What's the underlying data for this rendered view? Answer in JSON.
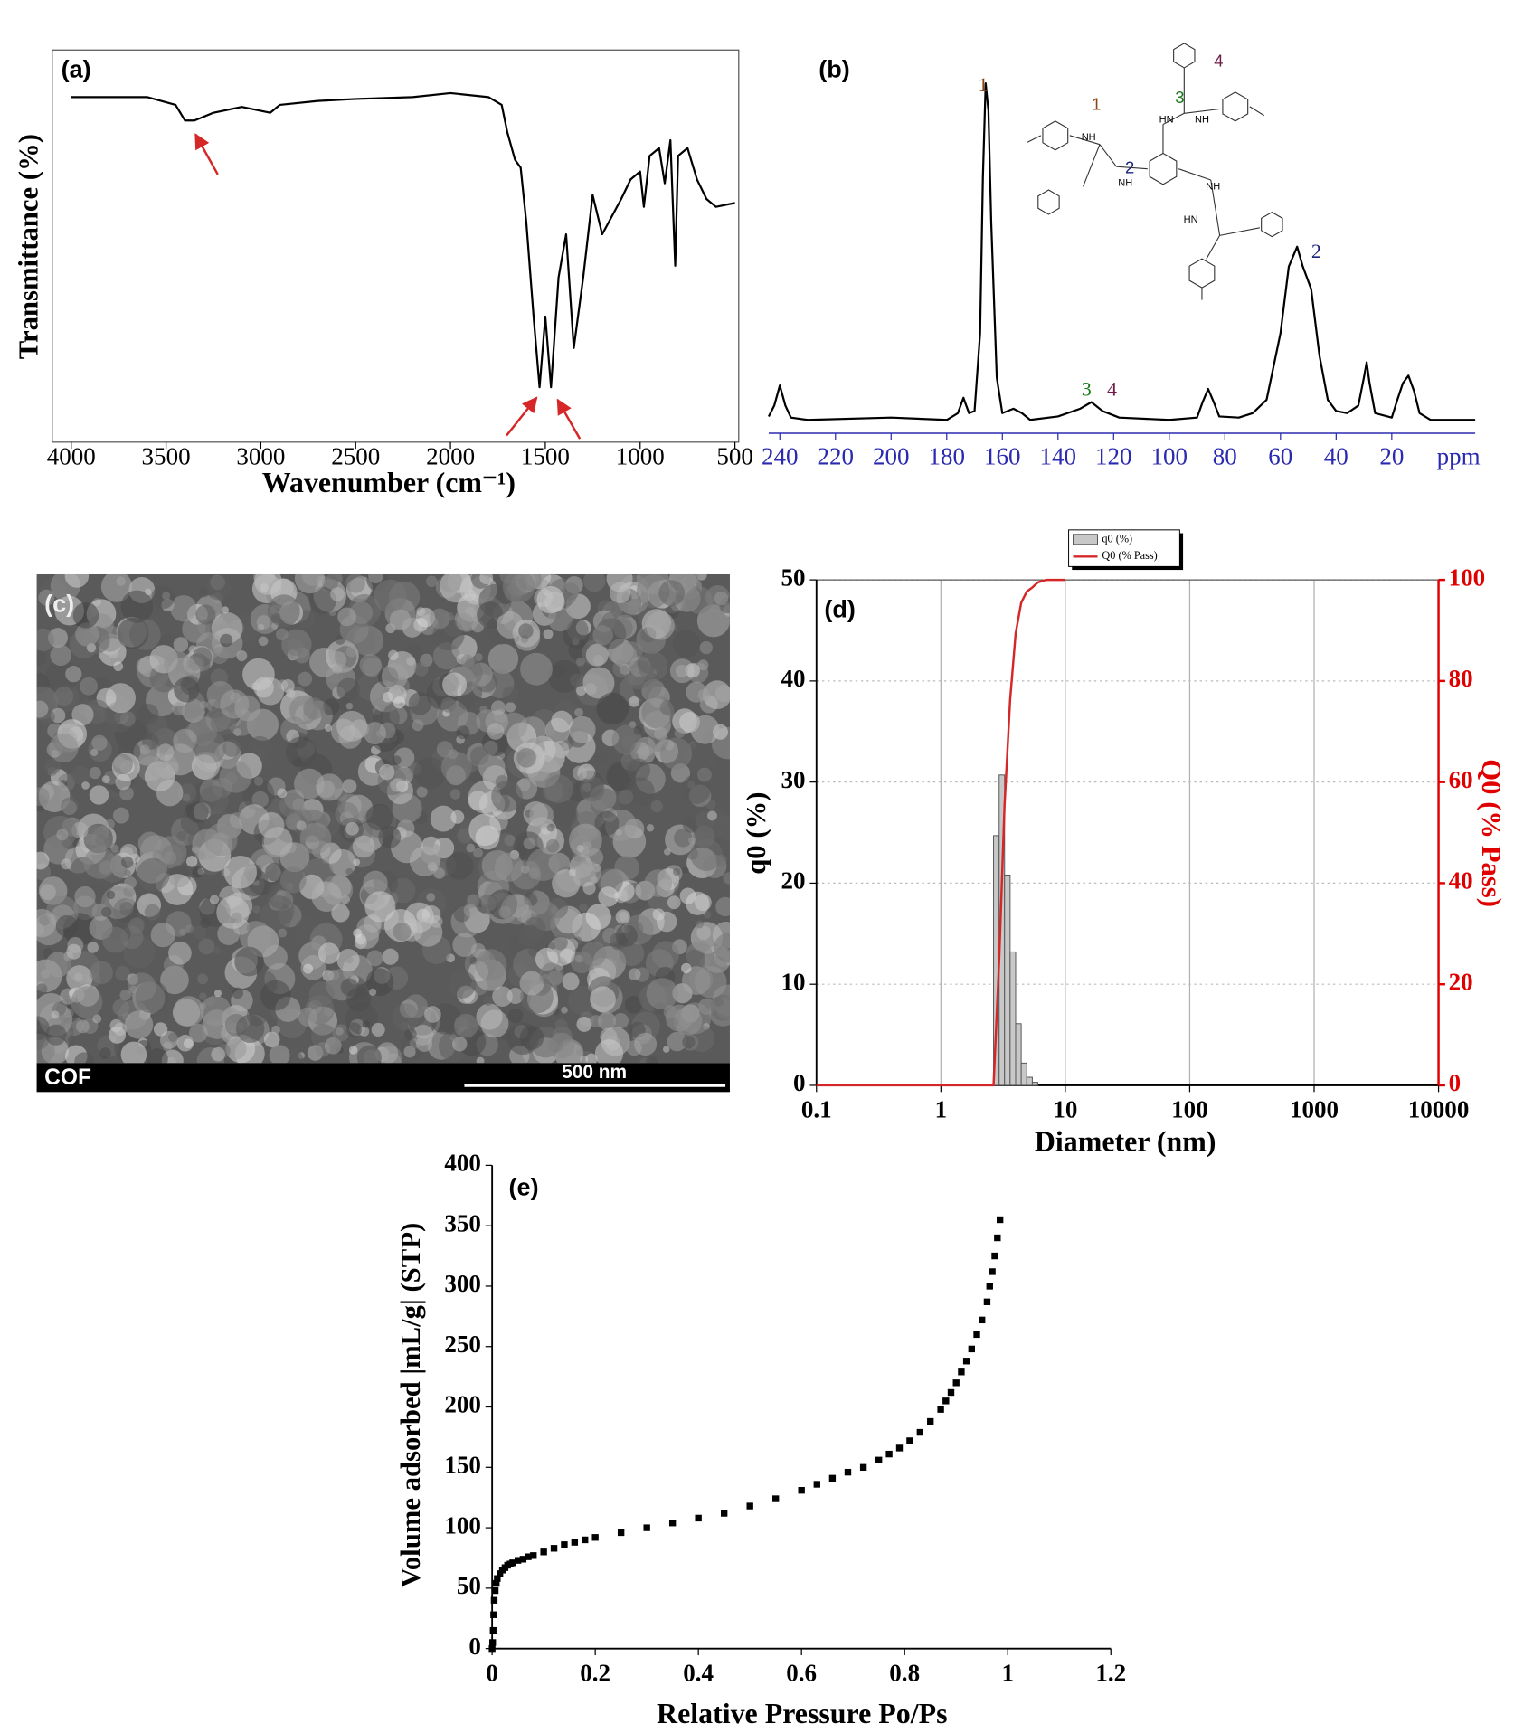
{
  "chart_data": [
    {
      "type": "line",
      "panel_label": "(a)",
      "x_label": "Wavenumber (cm⁻¹)",
      "y_label": "Transmittance (%)",
      "frame": "box",
      "color": "#000000",
      "x": [
        4000,
        3600,
        3450,
        3400,
        3350,
        3250,
        3100,
        2950,
        2900,
        2700,
        2500,
        2200,
        2000,
        1800,
        1730,
        1700,
        1660,
        1630,
        1600,
        1560,
        1530,
        1500,
        1470,
        1430,
        1390,
        1350,
        1300,
        1250,
        1200,
        1100,
        1050,
        1000,
        980,
        950,
        900,
        870,
        840,
        815,
        800,
        750,
        700,
        650,
        600,
        500
      ],
      "values": [
        88,
        88,
        86,
        82,
        82,
        84,
        85.5,
        84,
        86,
        87,
        87.5,
        88,
        89,
        88,
        86,
        79,
        72,
        70,
        56,
        31,
        14,
        32,
        14,
        42,
        53,
        24,
        42,
        63,
        53,
        62,
        67,
        69,
        60,
        73,
        75,
        66,
        77,
        45,
        73,
        75,
        67,
        62,
        60,
        61
      ],
      "xlim": [
        4100,
        480
      ],
      "ylim": [
        0,
        100
      ],
      "xticks": [
        4000,
        3500,
        3000,
        2500,
        2000,
        1500,
        1000,
        500
      ]
    },
    {
      "type": "line",
      "panel_label": "(b)",
      "x_label": "ppm",
      "frame": "bottom",
      "color": "#000000",
      "axis_color": "#2a2ab0",
      "x": [
        244,
        242,
        240,
        238,
        236,
        230,
        200,
        180,
        176,
        174,
        172,
        170,
        168,
        167,
        166,
        165,
        164,
        162,
        160,
        156,
        153,
        150,
        140,
        132,
        128,
        124,
        118,
        100,
        90,
        88,
        86,
        84,
        82,
        75,
        70,
        65,
        60,
        57,
        54,
        52,
        49,
        46,
        43,
        40,
        36,
        32,
        30,
        29,
        28,
        26,
        20,
        18,
        16,
        14,
        12,
        10,
        6,
        0,
        -10
      ],
      "values": [
        2.3,
        5.5,
        11.4,
        5.5,
        2.0,
        1.3,
        2.0,
        1.3,
        3.3,
        7.8,
        3.3,
        3.9,
        26.7,
        72.3,
        100,
        91.9,
        59.3,
        13.7,
        3.3,
        4.6,
        3.3,
        1.3,
        2.3,
        4.6,
        6.5,
        3.9,
        2.0,
        1.3,
        2.0,
        6.5,
        10.4,
        6.5,
        2.3,
        2.0,
        3.3,
        7.2,
        26.7,
        46.3,
        52.1,
        46.3,
        39.7,
        20.2,
        7.2,
        3.9,
        3.3,
        5.5,
        13.7,
        18.2,
        12.1,
        3.3,
        2.0,
        7.2,
        12.1,
        14.3,
        9.8,
        3.3,
        1.3,
        1.3,
        1.3
      ],
      "xlim": [
        244,
        -10
      ],
      "ylim": [
        0,
        100
      ],
      "xticks": [
        240,
        220,
        200,
        180,
        160,
        140,
        120,
        100,
        80,
        60,
        40,
        20
      ],
      "annotations": [
        {
          "text": "1",
          "color": "#8b4513"
        },
        {
          "text": "2",
          "color": "#1a237e"
        },
        {
          "text": "3",
          "color": "#1b7a1b"
        },
        {
          "text": "4",
          "color": "#6d1b4a"
        }
      ],
      "structure_labels": [
        {
          "text": "1",
          "color": "#8b4513"
        },
        {
          "text": "2",
          "color": "#1a237e"
        },
        {
          "text": "3",
          "color": "#1b7a1b"
        },
        {
          "text": "4",
          "color": "#6d1b4a"
        },
        {
          "text": "NH",
          "color": "#000000"
        },
        {
          "text": "NH",
          "color": "#000000"
        },
        {
          "text": "HN",
          "color": "#000000"
        },
        {
          "text": "NH",
          "color": "#000000"
        },
        {
          "text": "NH",
          "color": "#000000"
        },
        {
          "text": "HN",
          "color": "#000000"
        }
      ]
    },
    {
      "type": "histogram",
      "panel_label": "(d)",
      "x_label": "Diameter (nm)",
      "y_label": "q0 (%)",
      "y2_label": "Q0 (% Pass)",
      "y2_color": "#e00000",
      "log_x": true,
      "grid": true,
      "bins": [
        2.65,
        2.94,
        3.25,
        3.6,
        3.99,
        4.42,
        4.9,
        5.43,
        6.01
      ],
      "series": [
        {
          "name": "q0 (%)",
          "color": "#c8c8c8",
          "values": [
            24.7,
            30.7,
            20.8,
            13.2,
            6.1,
            2.2,
            0.8,
            0.3
          ]
        },
        {
          "name": "Q0 (% Pass)",
          "color": "#d62728",
          "axis": "y2",
          "x": [
            0.1,
            2.65,
            2.94,
            3.25,
            3.6,
            3.99,
            4.42,
            4.9,
            5.43,
            6.01,
            7,
            10
          ],
          "values": [
            0,
            0,
            25,
            55.4,
            76.2,
            89.4,
            95.5,
            97.7,
            98.5,
            99.5,
            100,
            100
          ]
        }
      ],
      "xlim": [
        0.1,
        10000
      ],
      "ylim": [
        0,
        50
      ],
      "y2lim": [
        0,
        100
      ],
      "xticks": [
        0.1,
        1,
        10,
        100,
        1000,
        10000
      ],
      "yticks": [
        0,
        10,
        20,
        30,
        40,
        50
      ],
      "y2ticks": [
        0,
        20,
        40,
        60,
        80,
        100
      ]
    },
    {
      "type": "scatter",
      "panel_label": "(e)",
      "x_label": "Relative Pressure Po/Ps",
      "y_label": "Volume adsorbed |mL/g| (STP)",
      "frame": "left-bottom",
      "color": "#000000",
      "x": [
        0,
        0.001,
        0.002,
        0.003,
        0.004,
        0.006,
        0.008,
        0.01,
        0.015,
        0.02,
        0.025,
        0.03,
        0.035,
        0.04,
        0.05,
        0.06,
        0.07,
        0.08,
        0.1,
        0.12,
        0.14,
        0.16,
        0.18,
        0.2,
        0.25,
        0.3,
        0.35,
        0.4,
        0.45,
        0.5,
        0.55,
        0.6,
        0.63,
        0.66,
        0.69,
        0.72,
        0.75,
        0.77,
        0.79,
        0.81,
        0.83,
        0.85,
        0.87,
        0.88,
        0.89,
        0.9,
        0.91,
        0.92,
        0.93,
        0.94,
        0.95,
        0.96,
        0.965,
        0.97,
        0.975,
        0.98,
        0.985
      ],
      "values": [
        0,
        5,
        15,
        28,
        40,
        48,
        54,
        58,
        62,
        65,
        67,
        69,
        70,
        71,
        73,
        74,
        76,
        77,
        80,
        83,
        86,
        88,
        90,
        92,
        96,
        100,
        104,
        108,
        112,
        118,
        124,
        131,
        136,
        141,
        146,
        150,
        156,
        161,
        166,
        172,
        179,
        188,
        198,
        205,
        212,
        220,
        229,
        238,
        248,
        260,
        272,
        287,
        300,
        312,
        325,
        340,
        355
      ],
      "xlim": [
        0,
        1.2
      ],
      "ylim": [
        0,
        400
      ],
      "xticks": [
        0,
        0.2,
        0.4,
        0.6,
        0.8,
        1,
        1.2
      ],
      "yticks": [
        0,
        50,
        100,
        150,
        200,
        250,
        300,
        350,
        400
      ]
    }
  ],
  "image_panel": {
    "panel_label": "(c)",
    "sample": "COF",
    "scale_bar": "500 nm"
  }
}
